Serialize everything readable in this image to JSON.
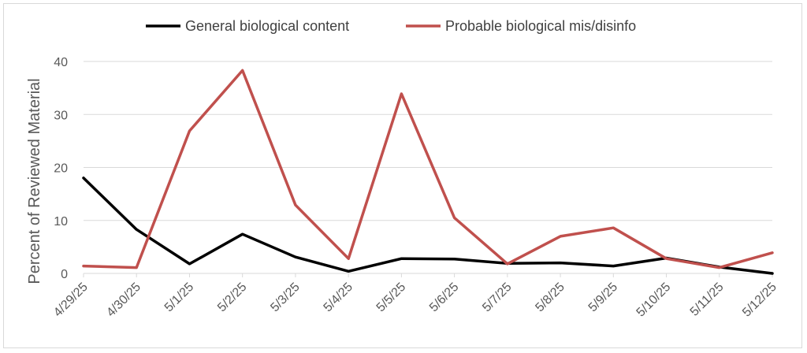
{
  "chart_data": {
    "type": "line",
    "title": "",
    "xlabel": "",
    "ylabel": "Percent of Reviewed Material",
    "ylim": [
      0,
      40
    ],
    "yticks": [
      "0",
      "10",
      "20",
      "30",
      "40"
    ],
    "grid": true,
    "legend_position": "top",
    "categories": [
      "4/29/25",
      "4/30/25",
      "5/1/25",
      "5/2/25",
      "5/3/25",
      "5/4/25",
      "5/5/25",
      "5/6/25",
      "5/7/25",
      "5/8/25",
      "5/9/25",
      "5/10/25",
      "5/11/25",
      "5/12/25"
    ],
    "series": [
      {
        "name": "General biological content",
        "color": "#000000",
        "values": [
          18.0,
          8.3,
          1.8,
          7.4,
          3.1,
          0.4,
          2.8,
          2.7,
          1.9,
          2.0,
          1.4,
          2.9,
          1.2,
          0.0
        ]
      },
      {
        "name": "Probable biological mis/disinfo",
        "color": "#c0504d",
        "values": [
          1.4,
          1.1,
          26.9,
          38.3,
          12.9,
          2.8,
          33.9,
          10.5,
          1.8,
          7.0,
          8.6,
          2.8,
          1.1,
          3.9
        ]
      }
    ]
  }
}
